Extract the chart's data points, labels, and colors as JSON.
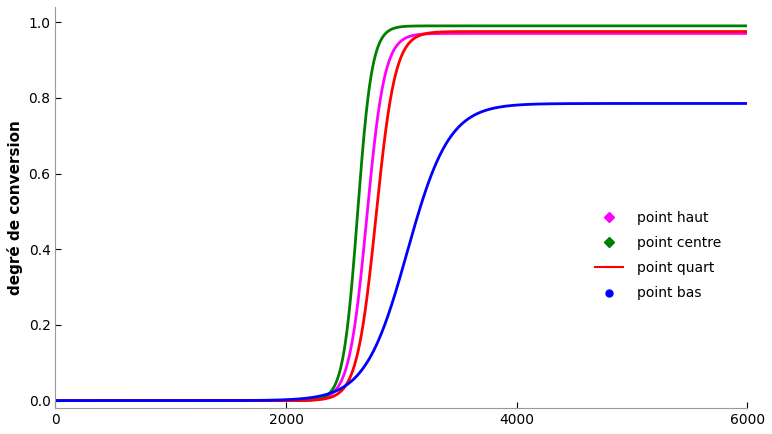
{
  "title": "",
  "ylabel": "degré de conversion",
  "xlabel": "",
  "xlim": [
    0,
    6000
  ],
  "ylim": [
    0,
    1.05
  ],
  "yticks": [
    0,
    0.2,
    0.4,
    0.6,
    0.8,
    1.0
  ],
  "xticks": [
    0,
    2000,
    4000,
    6000
  ],
  "series": [
    {
      "label": "point haut",
      "color": "#ff00ff",
      "marker": "D",
      "marker_size": 4,
      "inflection": 2700,
      "k": 0.013,
      "ymax": 0.97
    },
    {
      "label": "point centre",
      "color": "#008000",
      "marker": "D",
      "marker_size": 4,
      "inflection": 2620,
      "k": 0.016,
      "ymax": 0.99
    },
    {
      "label": "point quart",
      "color": "#ff0000",
      "marker": "o",
      "marker_size": 3,
      "inflection": 2780,
      "k": 0.012,
      "ymax": 0.975
    },
    {
      "label": "point bas",
      "color": "#0000ff",
      "marker": "o",
      "marker_size": 4,
      "inflection": 3050,
      "k": 0.0055,
      "ymax": 0.785
    }
  ],
  "legend_loc": "center right",
  "background_color": "#ffffff",
  "fontsize_label": 11,
  "fontsize_tick": 10,
  "fontsize_legend": 10,
  "line_width": 2.0
}
